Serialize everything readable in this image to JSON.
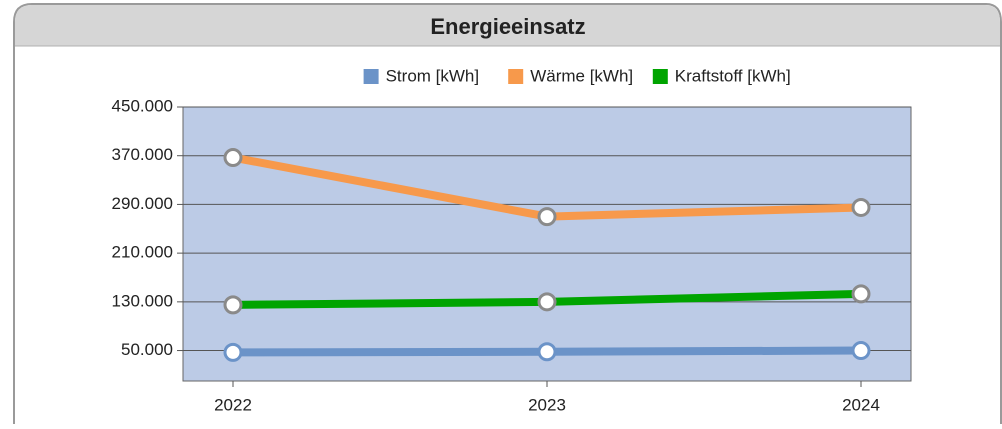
{
  "chart_data": {
    "type": "line",
    "title": "Energieeinsatz",
    "categories": [
      "2022",
      "2023",
      "2024"
    ],
    "series": [
      {
        "name": "Strom [kWh]",
        "color": "#6b93c8",
        "values": [
          47000,
          48000,
          50000
        ]
      },
      {
        "name": "Wärme [kWh]",
        "color": "#f7994b",
        "values": [
          367000,
          270000,
          285000
        ]
      },
      {
        "name": "Kraftstoff [kWh]",
        "color": "#00a400",
        "values": [
          125000,
          130000,
          143000
        ]
      }
    ],
    "ylim": [
      0,
      450000
    ],
    "yticks": [
      {
        "value": 50000,
        "label": "50.000"
      },
      {
        "value": 130000,
        "label": "130.000"
      },
      {
        "value": 210000,
        "label": "210.000"
      },
      {
        "value": 290000,
        "label": "290.000"
      },
      {
        "value": 370000,
        "label": "370.000"
      },
      {
        "value": 450000,
        "label": "450.000"
      }
    ],
    "grid": true,
    "legend": "top"
  }
}
